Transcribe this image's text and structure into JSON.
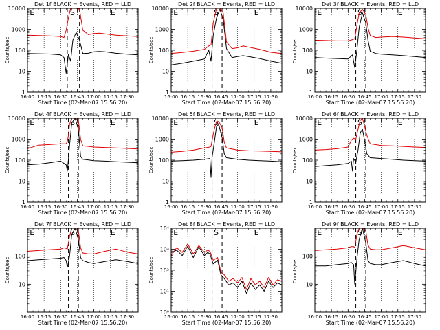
{
  "figure": {
    "x_tick_labels": [
      "16:00",
      "16:15",
      "16:30",
      "16:45",
      "17:00",
      "17:15",
      "17:30"
    ],
    "xlabel": "Start Time (02-Mar-07 15:56:20)",
    "ylabel": "Counts/sec",
    "region_labels": [
      "E",
      "S",
      "E"
    ]
  },
  "chart_data": [
    {
      "type": "line",
      "title": "Det 1f BLACK = Events, RED = LLD",
      "xlim_minutes_after_1600": [
        0,
        100
      ],
      "ylim": [
        1,
        10000
      ],
      "y_scale": "log",
      "y_tick_labels": [
        "1",
        "10",
        "100",
        "1000",
        "10000"
      ],
      "series": [
        {
          "label": "Events",
          "color": "#000000",
          "x": [
            0,
            10,
            20,
            30,
            33,
            35,
            37,
            39,
            41,
            44,
            47,
            50,
            55,
            60,
            65,
            70,
            80,
            90,
            100
          ],
          "y": [
            70,
            68,
            66,
            60,
            45,
            8,
            62,
            30,
            300,
            700,
            300,
            70,
            72,
            85,
            88,
            85,
            72,
            65,
            60
          ]
        },
        {
          "label": "LLD",
          "color": "#e00000",
          "x": [
            0,
            10,
            20,
            30,
            33,
            35,
            37,
            39,
            41,
            44,
            47,
            50,
            55,
            60,
            65,
            70,
            80,
            90,
            100
          ],
          "y": [
            520,
            500,
            480,
            450,
            400,
            900,
            3500,
            10000,
            10000,
            10000,
            9000,
            900,
            550,
            620,
            650,
            600,
            520,
            480,
            450
          ]
        }
      ],
      "dashed_lines_x": [
        36,
        47
      ]
    },
    {
      "type": "line",
      "title": "Det 2f BLACK = Events, RED = LLD",
      "xlim_minutes_after_1600": [
        0,
        100
      ],
      "ylim": [
        1,
        10000
      ],
      "y_scale": "log",
      "y_tick_labels": [
        "1",
        "10",
        "100",
        "1000",
        "10000"
      ],
      "series": [
        {
          "label": "Events",
          "color": "#000000",
          "x": [
            0,
            10,
            20,
            30,
            34,
            36,
            38,
            41,
            44,
            47,
            50,
            55,
            60,
            65,
            70,
            80,
            90,
            100
          ],
          "y": [
            20,
            24,
            30,
            38,
            100,
            30,
            500,
            3500,
            9000,
            3000,
            120,
            45,
            50,
            55,
            50,
            40,
            30,
            24
          ]
        },
        {
          "label": "LLD",
          "color": "#e00000",
          "x": [
            0,
            10,
            20,
            30,
            34,
            36,
            38,
            41,
            44,
            47,
            50,
            55,
            60,
            65,
            70,
            80,
            90,
            100
          ],
          "y": [
            70,
            78,
            90,
            110,
            160,
            180,
            2000,
            10000,
            10000,
            6000,
            250,
            120,
            130,
            160,
            140,
            110,
            80,
            70
          ]
        }
      ],
      "dashed_lines_x": [
        37,
        46
      ]
    },
    {
      "type": "line",
      "title": "Det 3f BLACK = Events, RED = LLD",
      "xlim_minutes_after_1600": [
        0,
        100
      ],
      "ylim": [
        1,
        10000
      ],
      "y_scale": "log",
      "y_tick_labels": [
        "1",
        "10",
        "100",
        "1000",
        "10000"
      ],
      "series": [
        {
          "label": "Events",
          "color": "#000000",
          "x": [
            0,
            10,
            20,
            30,
            34,
            36,
            38,
            40,
            43,
            46,
            48,
            50,
            55,
            60,
            70,
            80,
            90,
            100
          ],
          "y": [
            45,
            42,
            40,
            38,
            60,
            15,
            100,
            1200,
            6000,
            2000,
            300,
            90,
            70,
            65,
            60,
            55,
            50,
            45
          ]
        },
        {
          "label": "LLD",
          "color": "#e00000",
          "x": [
            0,
            10,
            20,
            30,
            34,
            36,
            38,
            40,
            43,
            46,
            48,
            50,
            55,
            60,
            70,
            80,
            90,
            100
          ],
          "y": [
            300,
            290,
            280,
            280,
            320,
            350,
            1500,
            6000,
            9000,
            5000,
            1200,
            500,
            400,
            420,
            450,
            420,
            380,
            350
          ]
        }
      ],
      "dashed_lines_x": [
        37,
        46
      ]
    },
    {
      "type": "line",
      "title": "Det 4f BLACK = Events, RED = LLD",
      "xlim_minutes_after_1600": [
        0,
        100
      ],
      "ylim": [
        1,
        10000
      ],
      "y_scale": "log",
      "y_tick_labels": [
        "1",
        "10",
        "100",
        "1000",
        "10000"
      ],
      "series": [
        {
          "label": "Events",
          "color": "#000000",
          "x": [
            0,
            10,
            20,
            30,
            35,
            36,
            37,
            38,
            40,
            43,
            46,
            48,
            50,
            60,
            70,
            80,
            90,
            100
          ],
          "y": [
            60,
            65,
            75,
            90,
            60,
            30,
            110,
            500,
            6000,
            10000,
            3000,
            150,
            110,
            95,
            90,
            85,
            80,
            75
          ]
        },
        {
          "label": "LLD",
          "color": "#e00000",
          "x": [
            0,
            10,
            20,
            30,
            35,
            36,
            37,
            38,
            40,
            43,
            46,
            48,
            50,
            60,
            70,
            80,
            90,
            100
          ],
          "y": [
            350,
            520,
            550,
            600,
            600,
            800,
            1500,
            5000,
            10000,
            10000,
            8000,
            1000,
            480,
            420,
            400,
            380,
            360,
            340
          ]
        }
      ],
      "dashed_lines_x": [
        37,
        46
      ]
    },
    {
      "type": "line",
      "title": "Det 5f BLACK = Events, RED = LLD",
      "xlim_minutes_after_1600": [
        0,
        100
      ],
      "ylim": [
        1,
        10000
      ],
      "y_scale": "log",
      "y_tick_labels": [
        "1",
        "10",
        "100",
        "1000",
        "10000"
      ],
      "series": [
        {
          "label": "Events",
          "color": "#000000",
          "x": [
            0,
            10,
            20,
            30,
            35,
            36,
            37,
            39,
            41,
            43,
            46,
            48,
            50,
            60,
            70,
            80,
            90,
            100
          ],
          "y": [
            90,
            95,
            100,
            110,
            120,
            15,
            140,
            700,
            4000,
            5000,
            1200,
            200,
            130,
            110,
            100,
            95,
            90,
            85
          ]
        },
        {
          "label": "LLD",
          "color": "#e00000",
          "x": [
            0,
            10,
            20,
            30,
            35,
            36,
            37,
            39,
            41,
            43,
            46,
            48,
            50,
            60,
            70,
            80,
            90,
            100
          ],
          "y": [
            240,
            260,
            300,
            380,
            420,
            450,
            900,
            3000,
            7000,
            7000,
            3500,
            700,
            380,
            300,
            280,
            270,
            260,
            250
          ]
        }
      ],
      "dashed_lines_x": [
        37,
        46
      ]
    },
    {
      "type": "line",
      "title": "Det 6f BLACK = Events, RED = LLD",
      "xlim_minutes_after_1600": [
        0,
        100
      ],
      "ylim": [
        1,
        10000
      ],
      "y_scale": "log",
      "y_tick_labels": [
        "1",
        "10",
        "100",
        "1000",
        "10000"
      ],
      "series": [
        {
          "label": "Events",
          "color": "#000000",
          "x": [
            0,
            10,
            20,
            30,
            33,
            34,
            35,
            37,
            39,
            41,
            43,
            45,
            47,
            50,
            60,
            70,
            80,
            90,
            100
          ],
          "y": [
            50,
            55,
            60,
            70,
            90,
            30,
            120,
            80,
            300,
            2000,
            3000,
            800,
            200,
            130,
            120,
            110,
            100,
            95,
            90
          ]
        },
        {
          "label": "LLD",
          "color": "#e00000",
          "x": [
            0,
            10,
            20,
            30,
            33,
            34,
            35,
            37,
            39,
            41,
            43,
            45,
            47,
            50,
            60,
            70,
            80,
            90,
            100
          ],
          "y": [
            300,
            320,
            350,
            420,
            900,
            1000,
            1100,
            1000,
            3000,
            8000,
            10000,
            4000,
            1500,
            600,
            500,
            480,
            450,
            420,
            400
          ]
        }
      ],
      "dashed_lines_x": [
        37,
        46
      ]
    },
    {
      "type": "line",
      "title": "Det 7f BLACK = Events, RED = LLD",
      "xlim_minutes_after_1600": [
        0,
        100
      ],
      "ylim": [
        1,
        1000
      ],
      "y_scale": "log",
      "y_tick_labels": [
        "10",
        "100"
      ],
      "series": [
        {
          "label": "Events",
          "color": "#000000",
          "x": [
            0,
            10,
            20,
            30,
            33,
            35,
            36,
            38,
            40,
            43,
            46,
            48,
            50,
            55,
            60,
            70,
            80,
            90,
            100
          ],
          "y": [
            70,
            75,
            80,
            85,
            90,
            70,
            40,
            100,
            600,
            1000,
            400,
            90,
            70,
            60,
            55,
            65,
            75,
            65,
            55
          ]
        },
        {
          "label": "LLD",
          "color": "#e00000",
          "x": [
            0,
            10,
            20,
            30,
            33,
            35,
            36,
            38,
            40,
            43,
            46,
            48,
            50,
            55,
            60,
            70,
            80,
            90,
            100
          ],
          "y": [
            150,
            160,
            170,
            180,
            200,
            190,
            180,
            500,
            1000,
            1000,
            800,
            200,
            130,
            120,
            120,
            150,
            180,
            140,
            120
          ]
        }
      ],
      "dashed_lines_x": [
        37,
        46
      ]
    },
    {
      "type": "line",
      "title": "Det 8f BLACK = Events, RED = LLD",
      "xlim_minutes_after_1600": [
        0,
        100
      ],
      "ylim": [
        1,
        10000
      ],
      "y_scale": "log",
      "y_tick_labels": [
        "10⁰",
        "10¹",
        "10²",
        "10³",
        "10⁴"
      ],
      "series": [
        {
          "label": "Events",
          "color": "#000000",
          "x": [
            0,
            5,
            10,
            15,
            20,
            25,
            30,
            33,
            35,
            38,
            42,
            45,
            48,
            52,
            56,
            60,
            64,
            68,
            72,
            76,
            80,
            84,
            88,
            92,
            96,
            100
          ],
          "y": [
            700,
            900,
            500,
            1400,
            400,
            1300,
            500,
            700,
            600,
            200,
            300,
            60,
            40,
            20,
            25,
            15,
            30,
            8,
            25,
            12,
            20,
            10,
            30,
            15,
            25,
            20
          ]
        },
        {
          "label": "LLD",
          "color": "#e00000",
          "x": [
            0,
            5,
            10,
            15,
            20,
            25,
            30,
            33,
            35,
            38,
            42,
            45,
            48,
            52,
            56,
            60,
            64,
            68,
            72,
            76,
            80,
            84,
            88,
            92,
            96,
            100
          ],
          "y": [
            500,
            1200,
            700,
            1800,
            600,
            1500,
            700,
            900,
            800,
            300,
            400,
            80,
            60,
            30,
            40,
            25,
            45,
            12,
            40,
            20,
            30,
            15,
            45,
            20,
            35,
            30
          ]
        }
      ],
      "dashed_lines_x": [
        37,
        46
      ]
    },
    {
      "type": "line",
      "title": "Det 9f BLACK = Events, RED = LLD",
      "xlim_minutes_after_1600": [
        0,
        100
      ],
      "ylim": [
        1,
        1000
      ],
      "y_scale": "log",
      "y_tick_labels": [
        "10",
        "100"
      ],
      "series": [
        {
          "label": "Events",
          "color": "#000000",
          "x": [
            0,
            10,
            20,
            30,
            33,
            35,
            36,
            38,
            40,
            43,
            46,
            48,
            50,
            55,
            60,
            70,
            80,
            90,
            100
          ],
          "y": [
            45,
            45,
            50,
            55,
            60,
            50,
            10,
            80,
            400,
            1000,
            300,
            70,
            55,
            50,
            50,
            60,
            70,
            55,
            45
          ]
        },
        {
          "label": "LLD",
          "color": "#e00000",
          "x": [
            0,
            10,
            20,
            30,
            33,
            35,
            36,
            38,
            40,
            43,
            46,
            48,
            50,
            55,
            60,
            70,
            80,
            90,
            100
          ],
          "y": [
            160,
            170,
            180,
            200,
            220,
            220,
            200,
            600,
            1000,
            1000,
            800,
            250,
            180,
            170,
            170,
            200,
            240,
            200,
            170
          ]
        }
      ],
      "dashed_lines_x": [
        37,
        46
      ]
    }
  ]
}
